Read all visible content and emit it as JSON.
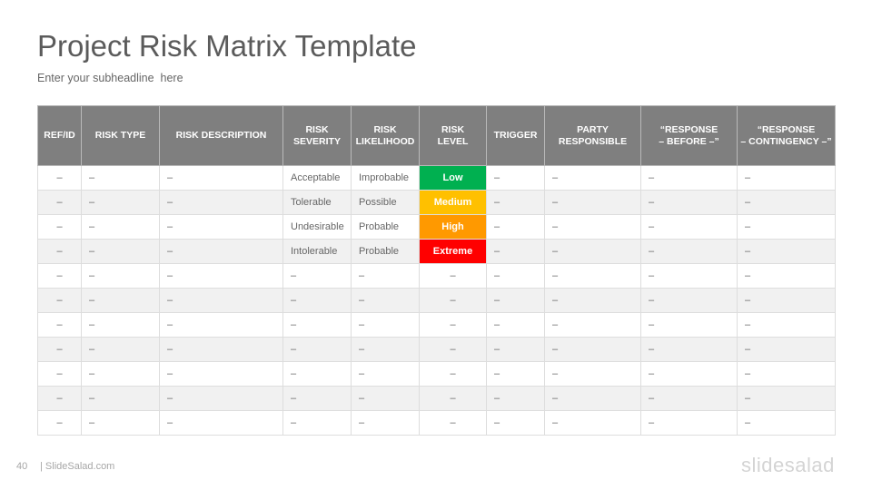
{
  "slide": {
    "title": "Project Risk Matrix Template",
    "subtitle": "Enter your subheadline  here",
    "page_number": "40",
    "site": "| SlideSalad.com",
    "logo_text": "slidesalad"
  },
  "table": {
    "columns": [
      "REF/ID",
      "RISK TYPE",
      "RISK DESCRIPTION",
      "RISK\nSEVERITY",
      "RISK\nLIKELIHOOD",
      "RISK\nLEVEL",
      "TRIGGER",
      "PARTY\nRESPONSIBLE",
      "“RESPONSE\n– BEFORE –”",
      "“RESPONSE\n– CONTINGENCY –”"
    ],
    "rows": [
      [
        "–",
        "–",
        "–",
        "Acceptable",
        "Improbable",
        "Low",
        "–",
        "–",
        "–",
        "–"
      ],
      [
        "–",
        "–",
        "–",
        "Tolerable",
        "Possible",
        "Medium",
        "–",
        "–",
        "–",
        "–"
      ],
      [
        "–",
        "–",
        "–",
        "Undesirable",
        "Probable",
        "High",
        "–",
        "–",
        "–",
        "–"
      ],
      [
        "–",
        "–",
        "–",
        "Intolerable",
        "Probable",
        "Extreme",
        "–",
        "–",
        "–",
        "–"
      ],
      [
        "–",
        "–",
        "–",
        "–",
        "–",
        "–",
        "–",
        "–",
        "–",
        "–"
      ],
      [
        "–",
        "–",
        "–",
        "–",
        "–",
        "–",
        "–",
        "–",
        "–",
        "–"
      ],
      [
        "–",
        "–",
        "–",
        "–",
        "–",
        "–",
        "–",
        "–",
        "–",
        "–"
      ],
      [
        "–",
        "–",
        "–",
        "–",
        "–",
        "–",
        "–",
        "–",
        "–",
        "–"
      ],
      [
        "–",
        "–",
        "–",
        "–",
        "–",
        "–",
        "–",
        "–",
        "–",
        "–"
      ],
      [
        "–",
        "–",
        "–",
        "–",
        "–",
        "–",
        "–",
        "–",
        "–",
        "–"
      ],
      [
        "–",
        "–",
        "–",
        "–",
        "–",
        "–",
        "–",
        "–",
        "–",
        "–"
      ]
    ],
    "level_colors": {
      "Low": "#00b050",
      "Medium": "#ffc000",
      "High": "#ff9900",
      "Extreme": "#ff0000"
    },
    "header_color": "#7f7f7f",
    "stripe_color": "#f1f1f1"
  }
}
